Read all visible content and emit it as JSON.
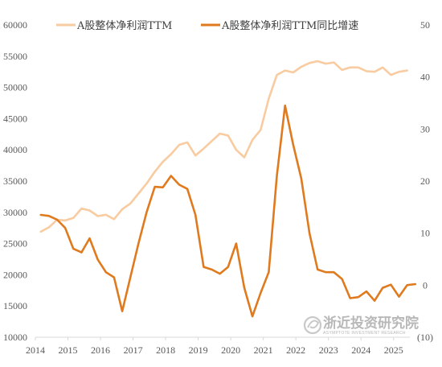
{
  "colors": {
    "series_profit": "#f8cba0",
    "series_growth": "#e07a1f",
    "axis": "#d9d9d9",
    "tick_text": "#595959",
    "negative_tick_text": "#c00000",
    "watermark": "#b8b8b8"
  },
  "watermark": {
    "icon": "coin-swirl-logo-icon",
    "main": "浙近投资研究院",
    "sub": "ASYMPTOTE INVESTMENT RESEARCH"
  },
  "chart_data": {
    "type": "line",
    "title": "",
    "legend_position": "top",
    "grid": false,
    "x_tick_labels": [
      "2014",
      "2015",
      "2016",
      "2017",
      "2018",
      "2019",
      "2020",
      "2021",
      "2022",
      "2023",
      "2024",
      "2025"
    ],
    "xlim": [
      "2014-01",
      "2025-07"
    ],
    "y_left": {
      "ylim": [
        10000,
        60000
      ],
      "tick_labels": [
        "10000",
        "15000",
        "20000",
        "25000",
        "30000",
        "35000",
        "40000",
        "45000",
        "50000",
        "55000",
        "60000"
      ]
    },
    "y_right": {
      "ylim": [
        -10,
        50
      ],
      "tick_labels": [
        "(10)",
        "0",
        "10",
        "20",
        "30",
        "40",
        "50"
      ]
    },
    "series": [
      {
        "name": "A股整体净利润TTM",
        "axis": "left",
        "points": [
          [
            "2014-03",
            26900
          ],
          [
            "2014-06",
            27600
          ],
          [
            "2014-09",
            28800
          ],
          [
            "2014-12",
            28700
          ],
          [
            "2015-03",
            29100
          ],
          [
            "2015-06",
            30600
          ],
          [
            "2015-09",
            30300
          ],
          [
            "2015-12",
            29400
          ],
          [
            "2016-03",
            29600
          ],
          [
            "2016-06",
            28900
          ],
          [
            "2016-09",
            30500
          ],
          [
            "2016-12",
            31400
          ],
          [
            "2017-03",
            33000
          ],
          [
            "2017-06",
            34600
          ],
          [
            "2017-09",
            36500
          ],
          [
            "2017-12",
            38100
          ],
          [
            "2018-03",
            39300
          ],
          [
            "2018-06",
            40800
          ],
          [
            "2018-09",
            41200
          ],
          [
            "2018-12",
            39100
          ],
          [
            "2019-03",
            40200
          ],
          [
            "2019-06",
            41400
          ],
          [
            "2019-09",
            42600
          ],
          [
            "2019-12",
            42300
          ],
          [
            "2020-03",
            40000
          ],
          [
            "2020-06",
            38800
          ],
          [
            "2020-09",
            41600
          ],
          [
            "2020-12",
            43200
          ],
          [
            "2021-03",
            48200
          ],
          [
            "2021-06",
            52000
          ],
          [
            "2021-09",
            52700
          ],
          [
            "2021-12",
            52400
          ],
          [
            "2022-03",
            53300
          ],
          [
            "2022-06",
            53900
          ],
          [
            "2022-09",
            54200
          ],
          [
            "2022-12",
            53800
          ],
          [
            "2023-03",
            54000
          ],
          [
            "2023-06",
            52800
          ],
          [
            "2023-09",
            53200
          ],
          [
            "2023-12",
            53200
          ],
          [
            "2024-03",
            52600
          ],
          [
            "2024-06",
            52500
          ],
          [
            "2024-09",
            53200
          ],
          [
            "2024-12",
            52000
          ],
          [
            "2025-03",
            52500
          ],
          [
            "2025-06",
            52700
          ]
        ]
      },
      {
        "name": "A股整体净利润TTM同比增速",
        "axis": "right",
        "points": [
          [
            "2014-03",
            13.5
          ],
          [
            "2014-06",
            13.3
          ],
          [
            "2014-09",
            12.6
          ],
          [
            "2014-12",
            11.0
          ],
          [
            "2015-03",
            7.0
          ],
          [
            "2015-06",
            6.3
          ],
          [
            "2015-09",
            9.0
          ],
          [
            "2015-12",
            4.9
          ],
          [
            "2016-03",
            2.5
          ],
          [
            "2016-06",
            1.5
          ],
          [
            "2016-09",
            -5.0
          ],
          [
            "2016-12",
            1.5
          ],
          [
            "2017-03",
            8.0
          ],
          [
            "2017-06",
            14.0
          ],
          [
            "2017-09",
            18.9
          ],
          [
            "2017-12",
            18.8
          ],
          [
            "2018-03",
            21.0
          ],
          [
            "2018-06",
            19.3
          ],
          [
            "2018-09",
            18.5
          ],
          [
            "2018-12",
            13.5
          ],
          [
            "2019-03",
            3.5
          ],
          [
            "2019-06",
            3.0
          ],
          [
            "2019-09",
            2.2
          ],
          [
            "2019-12",
            3.5
          ],
          [
            "2020-03",
            8.0
          ],
          [
            "2020-06",
            -0.5
          ],
          [
            "2020-09",
            -6.0
          ],
          [
            "2020-12",
            -1.5
          ],
          [
            "2021-03",
            2.5
          ],
          [
            "2021-06",
            21.0
          ],
          [
            "2021-09",
            34.5
          ],
          [
            "2021-12",
            27.0
          ],
          [
            "2022-03",
            20.5
          ],
          [
            "2022-06",
            10.0
          ],
          [
            "2022-09",
            3.0
          ],
          [
            "2022-12",
            2.5
          ],
          [
            "2023-03",
            2.5
          ],
          [
            "2023-06",
            1.2
          ],
          [
            "2023-09",
            -2.5
          ],
          [
            "2023-12",
            -2.3
          ],
          [
            "2024-03",
            -1.2
          ],
          [
            "2024-06",
            -3.0
          ],
          [
            "2024-09",
            -0.5
          ],
          [
            "2024-12",
            0.1
          ],
          [
            "2025-03",
            -2.2
          ],
          [
            "2025-06",
            0.0
          ],
          [
            "2025-09",
            0.2
          ]
        ]
      }
    ]
  }
}
